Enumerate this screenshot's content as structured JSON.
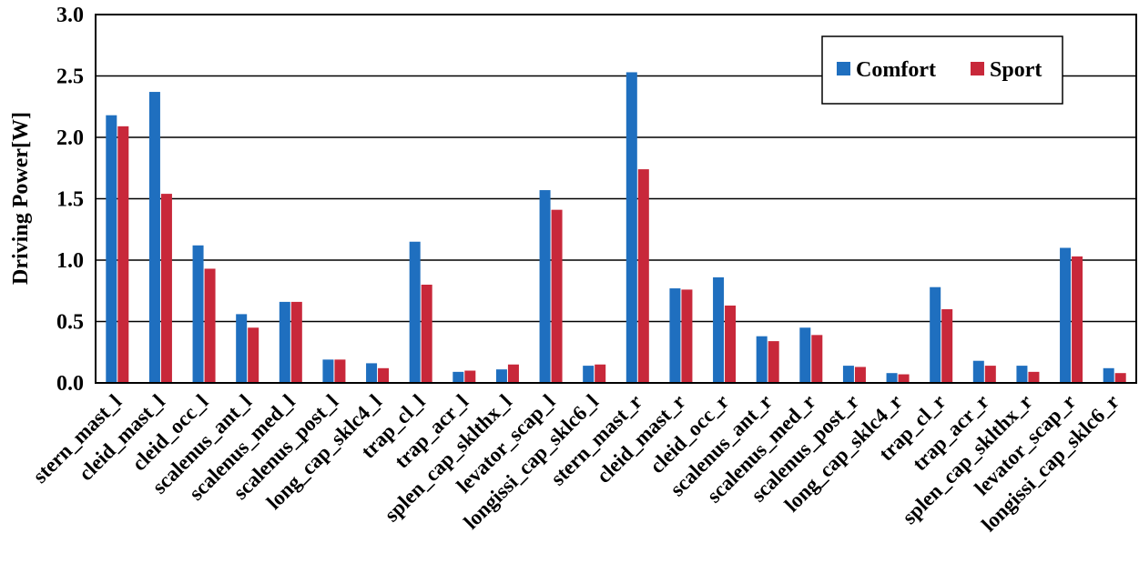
{
  "chart_data": {
    "type": "bar",
    "ylabel": "Driving Power[W]",
    "ylim": [
      0,
      3.0
    ],
    "yticks": [
      "0.0",
      "0.5",
      "1.0",
      "1.5",
      "2.0",
      "2.5",
      "3.0"
    ],
    "grid": true,
    "legend_position": "top-right",
    "categories": [
      "stern_mast_l",
      "cleid_mast_l",
      "cleid_occ_l",
      "scalenus_ant_l",
      "scalenus_med_l",
      "scalenus_post_l",
      "long_cap_sklc4_l",
      "trap_cl_l",
      "trap_acr_l",
      "splen_cap_sklthx_l",
      "levator_scap_l",
      "longissi_cap_sklc6_l",
      "stern_mast_r",
      "cleid_mast_r",
      "cleid_occ_r",
      "scalenus_ant_r",
      "scalenus_med_r",
      "scalenus_post_r",
      "long_cap_sklc4_r",
      "trap_cl_r",
      "trap_acr_r",
      "splen_cap_sklthx_r",
      "levator_scap_r",
      "longissi_cap_sklc6_r"
    ],
    "series": [
      {
        "name": "Comfort",
        "color": "#1f6fbf",
        "values": [
          2.18,
          2.37,
          1.12,
          0.56,
          0.66,
          0.19,
          0.16,
          1.15,
          0.09,
          0.11,
          1.57,
          0.14,
          2.53,
          0.77,
          0.86,
          0.38,
          0.45,
          0.14,
          0.08,
          0.78,
          0.18,
          0.14,
          1.1,
          0.12
        ]
      },
      {
        "name": "Sport",
        "color": "#c8283a",
        "values": [
          2.09,
          1.54,
          0.93,
          0.45,
          0.66,
          0.19,
          0.12,
          0.8,
          0.1,
          0.15,
          1.41,
          0.15,
          1.74,
          0.76,
          0.63,
          0.34,
          0.39,
          0.13,
          0.07,
          0.6,
          0.14,
          0.09,
          1.03,
          0.08
        ]
      }
    ]
  }
}
